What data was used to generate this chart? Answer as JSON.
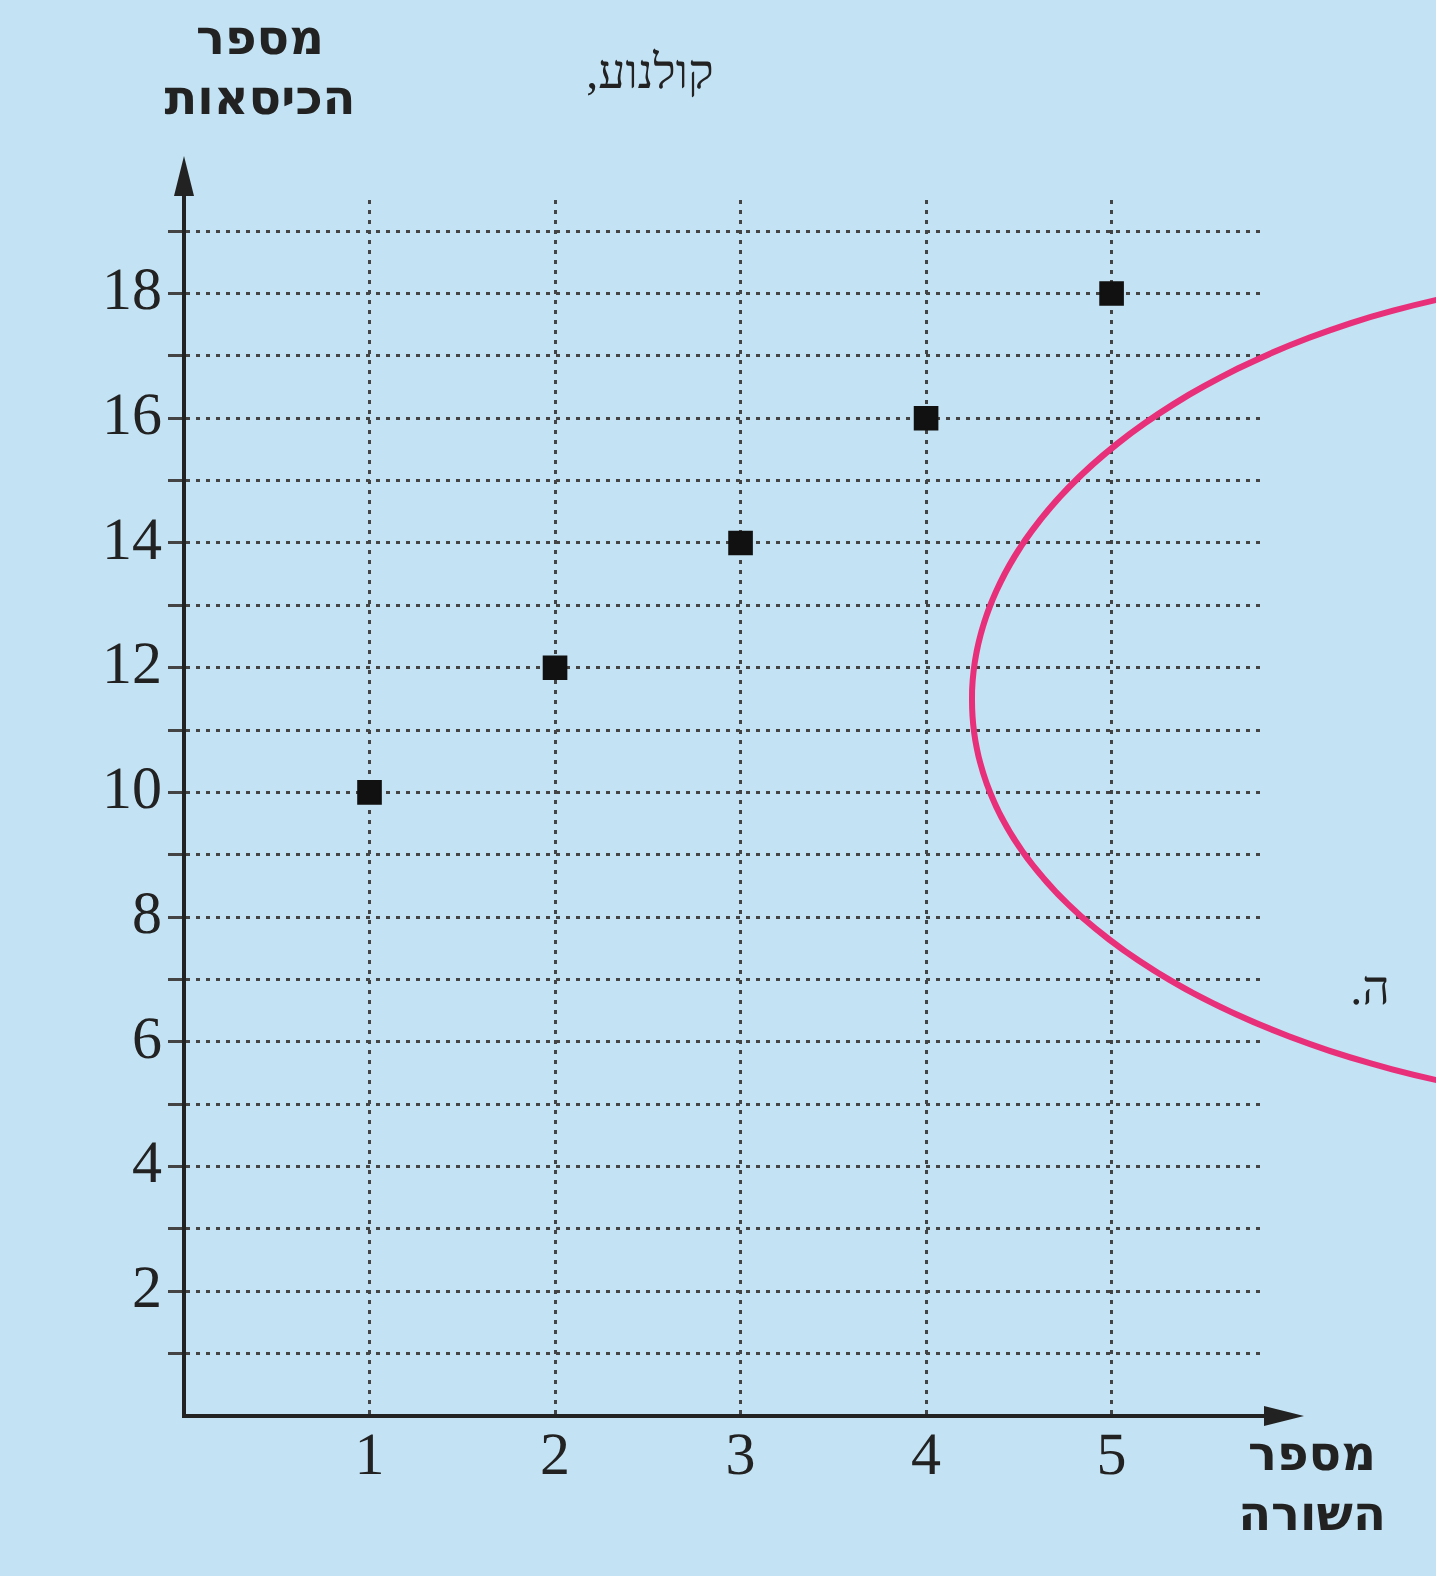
{
  "chart_data": {
    "type": "scatter",
    "xlabel": "מספר השורה",
    "ylabel": "מספר הכיסאות",
    "annotations": [
      "קולנוע,",
      "ה."
    ],
    "x": [
      1,
      2,
      3,
      4,
      5
    ],
    "series": [
      {
        "color": "#111111",
        "values": [
          10,
          12,
          14,
          16,
          18
        ]
      }
    ],
    "xlim": [
      0,
      5.8
    ],
    "xticks": [
      1,
      2,
      3,
      4,
      5
    ],
    "ylim": [
      0,
      19.5
    ],
    "yticks": [
      {
        "value": 1,
        "label": null
      },
      2,
      {
        "value": 3,
        "label": null
      },
      4,
      {
        "value": 5,
        "label": null
      },
      6,
      {
        "value": 7,
        "label": null
      },
      8,
      {
        "value": 9,
        "label": null
      },
      10,
      {
        "value": 11,
        "label": null
      },
      12,
      {
        "value": 13,
        "label": null
      },
      14,
      {
        "value": 15,
        "label": null
      },
      16,
      {
        "value": 17,
        "label": null
      },
      18,
      {
        "value": 19,
        "label": null
      }
    ],
    "grid": true,
    "legend": false,
    "marker": "square",
    "line_style": "dotted"
  }
}
